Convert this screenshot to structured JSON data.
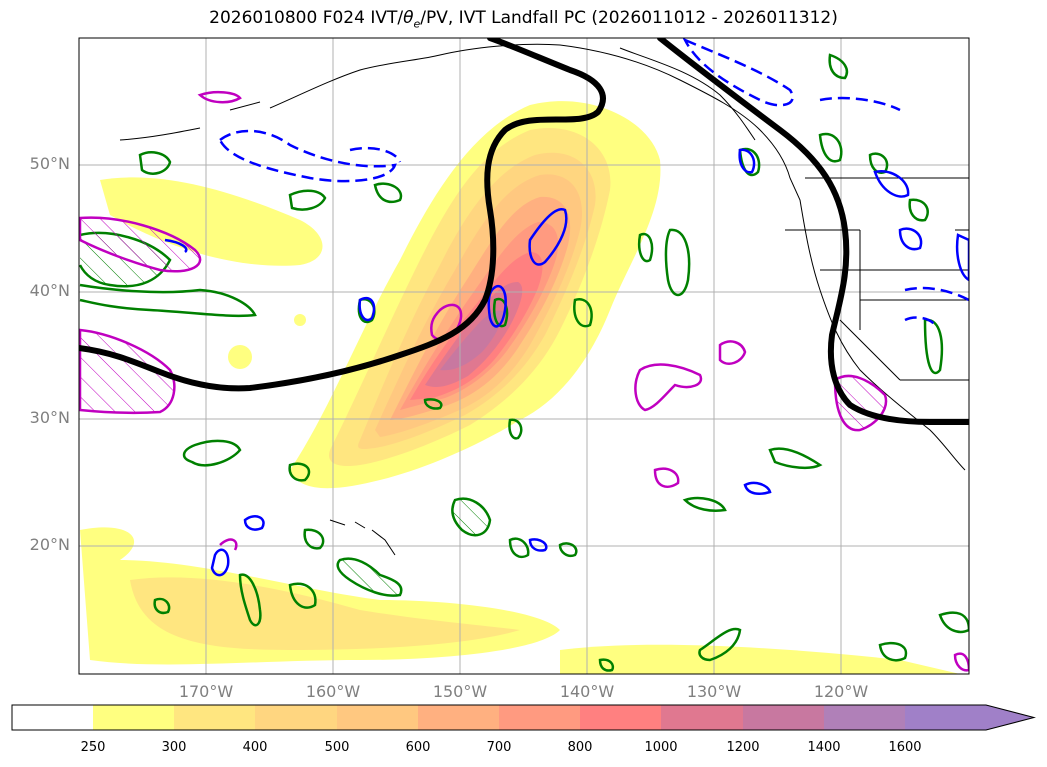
{
  "title": {
    "prefix": "2026010800 F024 IVT/",
    "theta": "θ",
    "theta_sub": "e",
    "suffix": "/PV, IVT Landfall PC (2026011012 - 2026011312)"
  },
  "map": {
    "lon_range": [
      -180,
      -110
    ],
    "lat_range": [
      10,
      60
    ],
    "lat_labels": [
      "20°N",
      "30°N",
      "40°N",
      "50°N"
    ],
    "lon_labels": [
      "170°W",
      "160°W",
      "150°W",
      "140°W",
      "130°W",
      "120°W"
    ],
    "colors": {
      "ivt_shading": [
        "#ffff80",
        "#ffe680",
        "#ffd680",
        "#ffc880",
        "#ffb080",
        "#ff9a80",
        "#ff8080",
        "#e07890",
        "#c878a0",
        "#b080b8",
        "#a080c8"
      ],
      "theta_e_contour": "#008000",
      "pv_contour_solid": "#0000ff",
      "pv_contour_dashed": "#0000ff",
      "landfall_contour": "#c000c0",
      "ivt_landfall_line": "#000000"
    }
  },
  "colorbar": {
    "labels": [
      "250",
      "300",
      "400",
      "500",
      "600",
      "700",
      "800",
      "1000",
      "1200",
      "1400",
      "1600"
    ],
    "colors": [
      "#ffffff",
      "#ffff80",
      "#ffe680",
      "#ffd680",
      "#ffc880",
      "#ffb080",
      "#ff9a80",
      "#ff8080",
      "#e07890",
      "#c878a0",
      "#b080b8",
      "#a080c8"
    ]
  }
}
